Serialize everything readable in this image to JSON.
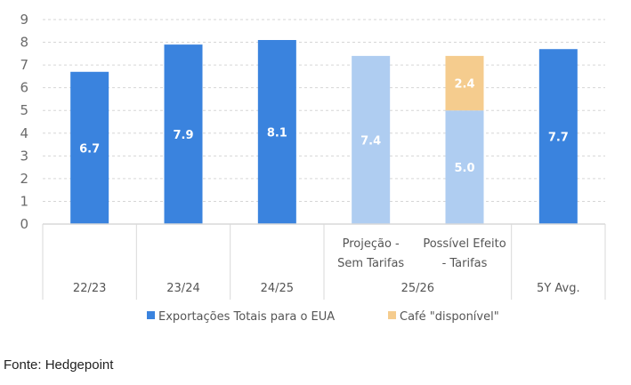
{
  "chart_data": {
    "type": "bar",
    "stacked": true,
    "title": "",
    "xlabel": "",
    "ylabel": "",
    "ylim": [
      0,
      9
    ],
    "yticks": [
      0,
      1,
      2,
      3,
      4,
      5,
      6,
      7,
      8,
      9
    ],
    "grid": true,
    "legend_position": "bottom",
    "bars": [
      {
        "group": "22/23",
        "sub": "",
        "segments": [
          {
            "series": "exports",
            "value": 6.7,
            "color": "#3a83de",
            "label": "6.7"
          }
        ]
      },
      {
        "group": "23/24",
        "sub": "",
        "segments": [
          {
            "series": "exports",
            "value": 7.9,
            "color": "#3a83de",
            "label": "7.9"
          }
        ]
      },
      {
        "group": "24/25",
        "sub": "",
        "segments": [
          {
            "series": "exports",
            "value": 8.1,
            "color": "#3a83de",
            "label": "8.1"
          }
        ]
      },
      {
        "group": "25/26",
        "sub": [
          "Projeção -",
          "Sem Tarifas"
        ],
        "segments": [
          {
            "series": "exports",
            "value": 7.4,
            "color": "#afcdf1",
            "label": "7.4"
          }
        ]
      },
      {
        "group": "25/26",
        "sub": [
          "Possível Efeito",
          "- Tarifas"
        ],
        "segments": [
          {
            "series": "exports",
            "value": 5.0,
            "color": "#afcdf1",
            "label": "5.0"
          },
          {
            "series": "available",
            "value": 2.4,
            "color": "#f5cc8e",
            "label": "2.4"
          }
        ]
      },
      {
        "group": "5Y Avg.",
        "sub": "",
        "segments": [
          {
            "series": "exports",
            "value": 7.7,
            "color": "#3a83de",
            "label": "7.7"
          }
        ]
      }
    ],
    "groups": [
      "22/23",
      "23/24",
      "24/25",
      "25/26",
      "5Y Avg."
    ],
    "legend": [
      {
        "name": "Exportações Totais para o EUA",
        "color": "#3a83de"
      },
      {
        "name": "Café \"disponível\"",
        "color": "#f5cc8e"
      }
    ]
  },
  "source": "Fonte: Hedgepoint"
}
